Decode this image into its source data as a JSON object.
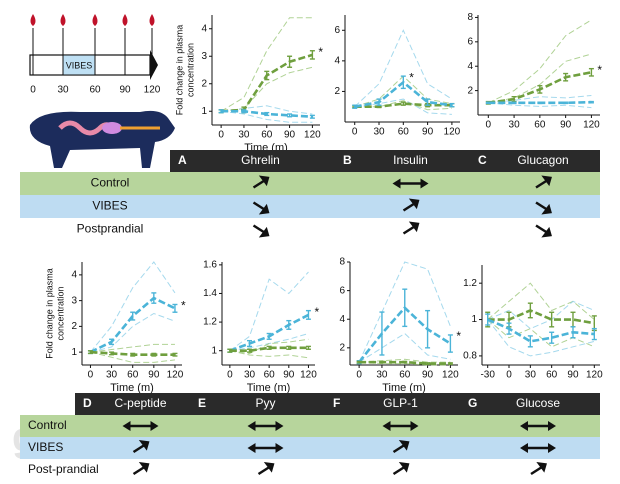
{
  "timeline": {
    "ticks": [
      "0",
      "30",
      "60",
      "90",
      "120"
    ],
    "box_label": "VIBES"
  },
  "watermark": "gidat.ir",
  "chart_data": [
    {
      "type": "line",
      "x": [
        0,
        30,
        60,
        90,
        120
      ],
      "xlim": [
        -12,
        130
      ],
      "xticks": [
        0,
        30,
        60,
        90,
        120
      ],
      "ylim": [
        0.5,
        4.5
      ],
      "yticks": [
        1,
        2,
        3,
        4
      ],
      "xlabel": "Time (m)",
      "ylabel": [
        "Fold change in plasma",
        "concentration"
      ],
      "annotation": "*",
      "series": [
        {
          "color": "#6f9f3e",
          "style": "mean",
          "values": [
            1,
            1.05,
            2.3,
            2.8,
            3.05
          ],
          "errors": [
            0.05,
            0.1,
            0.15,
            0.2,
            0.15
          ]
        },
        {
          "color": "#4bb4d8",
          "style": "mean",
          "values": [
            1,
            1,
            0.9,
            0.85,
            0.8
          ],
          "errors": [
            0.05,
            0.05,
            0.05,
            0.05,
            0.05
          ]
        },
        {
          "color": "#9cc77a",
          "style": "individual",
          "values": [
            1,
            1.5,
            3.2,
            4.4,
            4.4
          ]
        },
        {
          "color": "#9cc77a",
          "style": "individual",
          "values": [
            1,
            1.1,
            2,
            2.4,
            2.6
          ]
        },
        {
          "color": "#8fd0e8",
          "style": "individual",
          "values": [
            1,
            1.1,
            1.2,
            1,
            0.9
          ]
        },
        {
          "color": "#8fd0e8",
          "style": "individual",
          "values": [
            1,
            0.9,
            0.7,
            0.6,
            0.6
          ]
        }
      ]
    },
    {
      "type": "line",
      "x": [
        0,
        30,
        60,
        90,
        120
      ],
      "xlim": [
        -12,
        130
      ],
      "xticks": [
        0,
        30,
        60,
        90,
        120
      ],
      "ylim": [
        0,
        7
      ],
      "yticks": [
        2,
        4,
        6
      ],
      "annotation": "*",
      "series": [
        {
          "color": "#6f9f3e",
          "style": "mean",
          "values": [
            1,
            1,
            1.2,
            1.1,
            1.1
          ],
          "errors": [
            0.05,
            0.05,
            0.1,
            0.1,
            0.1
          ]
        },
        {
          "color": "#4bb4d8",
          "style": "mean",
          "values": [
            1,
            1.3,
            2.6,
            1.3,
            1.1
          ],
          "errors": [
            0.1,
            0.2,
            0.4,
            0.2,
            0.1
          ]
        },
        {
          "color": "#9cc77a",
          "style": "individual",
          "values": [
            1,
            1.5,
            3,
            1.5,
            1.2
          ]
        },
        {
          "color": "#9cc77a",
          "style": "individual",
          "values": [
            1,
            1,
            1.4,
            0.8,
            0.9
          ]
        },
        {
          "color": "#8fd0e8",
          "style": "individual",
          "values": [
            1,
            2.5,
            6,
            2.5,
            1.5
          ]
        },
        {
          "color": "#8fd0e8",
          "style": "individual",
          "values": [
            1,
            1.2,
            1.5,
            0.6,
            0.5
          ]
        }
      ]
    },
    {
      "type": "line",
      "x": [
        0,
        30,
        60,
        90,
        120
      ],
      "xlim": [
        -12,
        130
      ],
      "xticks": [
        0,
        30,
        60,
        90,
        120
      ],
      "ylim": [
        0,
        8.2
      ],
      "yticks": [
        2,
        4,
        6,
        8
      ],
      "annotation": "*",
      "series": [
        {
          "color": "#6f9f3e",
          "style": "mean",
          "values": [
            1,
            1.3,
            2.1,
            3.1,
            3.5
          ],
          "errors": [
            0.1,
            0.2,
            0.3,
            0.3,
            0.3
          ]
        },
        {
          "color": "#4bb4d8",
          "style": "mean",
          "values": [
            1,
            1,
            1,
            1,
            1.05
          ],
          "errors": [
            0.05,
            0.05,
            0.05,
            0.05,
            0.05
          ]
        },
        {
          "color": "#9cc77a",
          "style": "individual",
          "values": [
            1,
            2,
            3.8,
            6.5,
            7.8
          ]
        },
        {
          "color": "#9cc77a",
          "style": "individual",
          "values": [
            1,
            1.4,
            2.5,
            4.4,
            5
          ]
        },
        {
          "color": "#8fd0e8",
          "style": "individual",
          "values": [
            1,
            1.2,
            1.5,
            1.4,
            1.6
          ]
        },
        {
          "color": "#8fd0e8",
          "style": "individual",
          "values": [
            1,
            0.8,
            0.7,
            0.8,
            0.6
          ]
        }
      ]
    },
    {
      "type": "line",
      "x": [
        0,
        30,
        60,
        90,
        120
      ],
      "xlim": [
        -12,
        130
      ],
      "xticks": [
        0,
        30,
        60,
        90,
        120
      ],
      "ylim": [
        0.5,
        4.5
      ],
      "yticks": [
        1,
        2,
        3,
        4
      ],
      "xlabel": "Time (m)",
      "ylabel": [
        "Fold change in plasma",
        "concentration"
      ],
      "annotation": "*",
      "series": [
        {
          "color": "#4bb4d8",
          "style": "mean",
          "values": [
            1,
            1.4,
            2.4,
            3.1,
            2.7
          ],
          "errors": [
            0.05,
            0.1,
            0.15,
            0.2,
            0.15
          ]
        },
        {
          "color": "#6f9f3e",
          "style": "mean",
          "values": [
            1,
            0.95,
            0.9,
            0.9,
            0.9
          ],
          "errors": [
            0.05,
            0.05,
            0.05,
            0.05,
            0.05
          ]
        },
        {
          "color": "#8fd0e8",
          "style": "individual",
          "values": [
            1,
            2,
            3.5,
            4.5,
            3.3
          ]
        },
        {
          "color": "#8fd0e8",
          "style": "individual",
          "values": [
            1,
            1.2,
            2,
            2.5,
            2.2
          ]
        },
        {
          "color": "#9cc77a",
          "style": "individual",
          "values": [
            1,
            1.1,
            1.2,
            1.3,
            1.3
          ]
        },
        {
          "color": "#9cc77a",
          "style": "individual",
          "values": [
            1,
            0.8,
            0.6,
            0.6,
            0.7
          ]
        }
      ]
    },
    {
      "type": "line",
      "x": [
        0,
        30,
        60,
        90,
        120
      ],
      "xlim": [
        -12,
        130
      ],
      "xticks": [
        0,
        30,
        60,
        90,
        120
      ],
      "ylim": [
        0.9,
        1.62
      ],
      "yticks": [
        1,
        1.2,
        1.4,
        1.6
      ],
      "xlabel": "Time (m)",
      "annotation": "*",
      "series": [
        {
          "color": "#4bb4d8",
          "style": "mean",
          "values": [
            1,
            1.05,
            1.1,
            1.18,
            1.25
          ],
          "errors": [
            0.01,
            0.02,
            0.02,
            0.03,
            0.03
          ]
        },
        {
          "color": "#6f9f3e",
          "style": "mean",
          "values": [
            1,
            1,
            1.02,
            1.02,
            1.02
          ],
          "errors": [
            0.01,
            0.01,
            0.01,
            0.01,
            0.01
          ]
        },
        {
          "color": "#8fd0e8",
          "style": "individual",
          "values": [
            1,
            1.1,
            1.5,
            1.4,
            1.55
          ]
        },
        {
          "color": "#8fd0e8",
          "style": "individual",
          "values": [
            1,
            1.02,
            1.05,
            1.08,
            1.12
          ]
        },
        {
          "color": "#9cc77a",
          "style": "individual",
          "values": [
            1,
            0.98,
            1.05,
            1.06,
            1.08
          ]
        },
        {
          "color": "#9cc77a",
          "style": "individual",
          "values": [
            1,
            0.97,
            0.96,
            0.97,
            0.95
          ]
        }
      ]
    },
    {
      "type": "line",
      "x": [
        0,
        30,
        60,
        90,
        120
      ],
      "xlim": [
        -12,
        130
      ],
      "xticks": [
        0,
        30,
        60,
        90,
        120
      ],
      "ylim": [
        0.8,
        8
      ],
      "yticks": [
        2,
        4,
        6,
        8
      ],
      "xlabel": "Time (m)",
      "annotation": "*",
      "series": [
        {
          "color": "#4bb4d8",
          "style": "mean",
          "values": [
            1,
            3,
            4.8,
            3.3,
            2.3
          ],
          "errors": [
            0.1,
            1.5,
            1.3,
            1.3,
            0.6
          ]
        },
        {
          "color": "#6f9f3e",
          "style": "mean",
          "values": [
            1,
            1,
            1,
            0.9,
            0.9
          ],
          "errors": [
            0.05,
            0.05,
            0.05,
            0.05,
            0.05
          ]
        },
        {
          "color": "#8fd0e8",
          "style": "individual",
          "values": [
            1,
            4.5,
            8,
            7.5,
            3.5
          ]
        },
        {
          "color": "#8fd0e8",
          "style": "individual",
          "values": [
            1,
            2,
            3,
            1.5,
            1.2
          ]
        },
        {
          "color": "#9cc77a",
          "style": "individual",
          "values": [
            1,
            1.1,
            1.2,
            1,
            1
          ]
        },
        {
          "color": "#9cc77a",
          "style": "individual",
          "values": [
            1,
            0.9,
            0.9,
            0.8,
            0.8
          ]
        }
      ]
    },
    {
      "type": "line",
      "x": [
        -30,
        0,
        30,
        60,
        90,
        120
      ],
      "xlim": [
        -38,
        128
      ],
      "xticks": [
        -30,
        0,
        30,
        60,
        90,
        120
      ],
      "ylim": [
        0.75,
        1.3
      ],
      "yticks": [
        0.8,
        1,
        1.2
      ],
      "series": [
        {
          "color": "#6f9f3e",
          "style": "mean",
          "values": [
            1,
            1,
            1.05,
            1,
            1,
            0.98
          ],
          "errors": [
            0.04,
            0.04,
            0.04,
            0.04,
            0.04,
            0.04
          ]
        },
        {
          "color": "#4bb4d8",
          "style": "mean",
          "values": [
            1,
            0.95,
            0.88,
            0.9,
            0.93,
            0.92
          ],
          "errors": [
            0.03,
            0.03,
            0.03,
            0.03,
            0.03,
            0.03
          ]
        },
        {
          "color": "#9cc77a",
          "style": "individual",
          "values": [
            1,
            1.1,
            1.2,
            1.05,
            1.1,
            1
          ]
        },
        {
          "color": "#9cc77a",
          "style": "individual",
          "values": [
            1,
            0.9,
            0.95,
            0.85,
            0.9,
            0.85
          ]
        },
        {
          "color": "#8fd0e8",
          "style": "individual",
          "values": [
            1,
            1.05,
            0.95,
            1,
            1.1,
            1.05
          ]
        },
        {
          "color": "#8fd0e8",
          "style": "individual",
          "values": [
            1,
            0.85,
            0.8,
            0.82,
            0.85,
            0.88
          ]
        }
      ]
    }
  ],
  "tables": [
    {
      "headers": [
        {
          "letter": "A",
          "name": "Ghrelin"
        },
        {
          "letter": "B",
          "name": "Insulin"
        },
        {
          "letter": "C",
          "name": "Glucagon"
        }
      ],
      "rows": [
        "Control",
        "VIBES",
        "Postprandial"
      ]
    },
    {
      "headers": [
        {
          "letter": "D",
          "name": "C-peptide"
        },
        {
          "letter": "E",
          "name": "Pyy"
        },
        {
          "letter": "F",
          "name": "GLP-1"
        },
        {
          "letter": "G",
          "name": "Glucose"
        }
      ],
      "rows": [
        "Control",
        "VIBES",
        "Post-prandial"
      ]
    }
  ]
}
